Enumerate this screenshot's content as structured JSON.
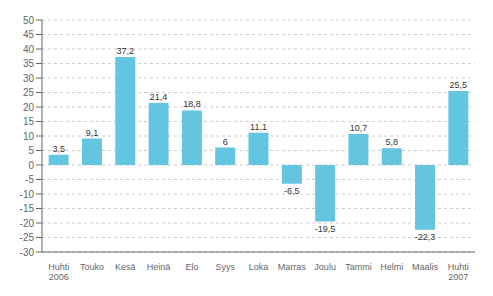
{
  "chart_data": {
    "type": "bar",
    "categories": [
      "Huhti\n2006",
      "Touko",
      "Kesä",
      "Heinä",
      "Elo",
      "Syys",
      "Loka",
      "Marras",
      "Joulu",
      "Tammi",
      "Helmi",
      "Maalis",
      "Huhti\n2007"
    ],
    "values": [
      3.5,
      9.1,
      37.2,
      21.4,
      18.8,
      6.0,
      11.1,
      -6.5,
      -19.5,
      10.7,
      5.8,
      -22.3,
      25.5
    ],
    "value_labels": [
      "3,5",
      "9,1",
      "37,2",
      "21,4",
      "18,8",
      "6",
      "11,1",
      "-6,5",
      "-19,5",
      "10,7",
      "5,8",
      "-22,3",
      "25,5"
    ],
    "color": "#63C5E0",
    "ylim": [
      -30,
      50
    ],
    "yticks": [
      -30,
      -25,
      -20,
      -15,
      -10,
      -5,
      0,
      5,
      10,
      15,
      20,
      25,
      30,
      35,
      40,
      45,
      50
    ],
    "grid": true,
    "data_labels": true
  }
}
